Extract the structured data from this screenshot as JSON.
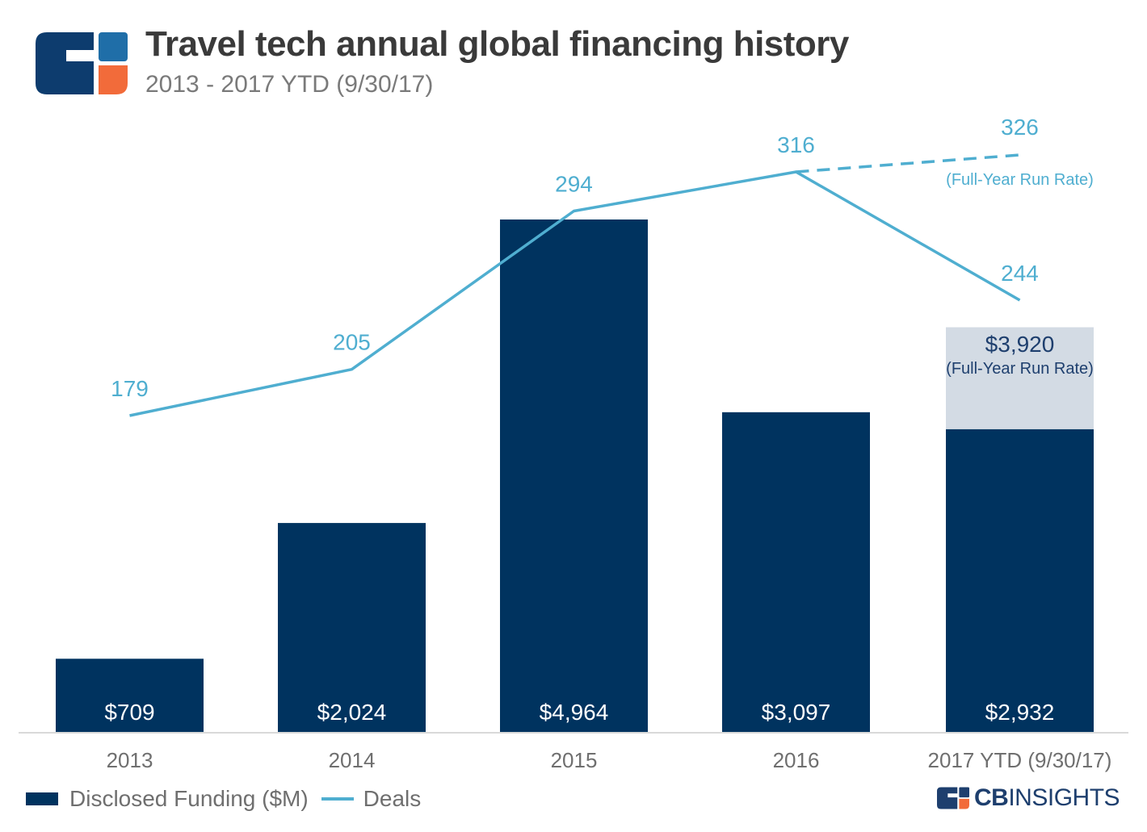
{
  "header": {
    "title": "Travel tech annual global financing history",
    "subtitle": "2013 - 2017 YTD (9/30/17)"
  },
  "brand": {
    "bold": "CB",
    "light": "INSIGHTS"
  },
  "colors": {
    "bar": "#00335f",
    "bar_runrate": "#d3dbe4",
    "line": "#4faed0",
    "axis": "#d9d9d9",
    "label_dark": "#1e3f6e",
    "tick_text": "#6f6f6f",
    "logo_blue": "#0d3c6e",
    "logo_orange": "#f26b3a",
    "logo_lightblue": "#1f6ea8"
  },
  "chart_data": {
    "type": "bar",
    "categories": [
      "2013",
      "2014",
      "2015",
      "2016",
      "2017 YTD (9/30/17)"
    ],
    "series": [
      {
        "name": "Disclosed Funding ($M)",
        "kind": "bar",
        "values": [
          709,
          2024,
          4964,
          3097,
          2932
        ],
        "labels": [
          "$709",
          "$2,024",
          "$4,964",
          "$3,097",
          "$2,932"
        ]
      },
      {
        "name": "Deals",
        "kind": "line",
        "values": [
          179,
          205,
          294,
          316,
          244
        ],
        "labels": [
          "179",
          "205",
          "294",
          "316",
          "244"
        ]
      }
    ],
    "run_rate": {
      "funding_value": 3920,
      "funding_label": "$3,920",
      "deals_value": 326,
      "deals_label": "326",
      "note": "(Full-Year Run Rate)"
    },
    "ylim_bars": [
      0,
      5000
    ],
    "ylim_deals": [
      0,
      330
    ],
    "legend_position": "bottom-left",
    "grid": false
  }
}
